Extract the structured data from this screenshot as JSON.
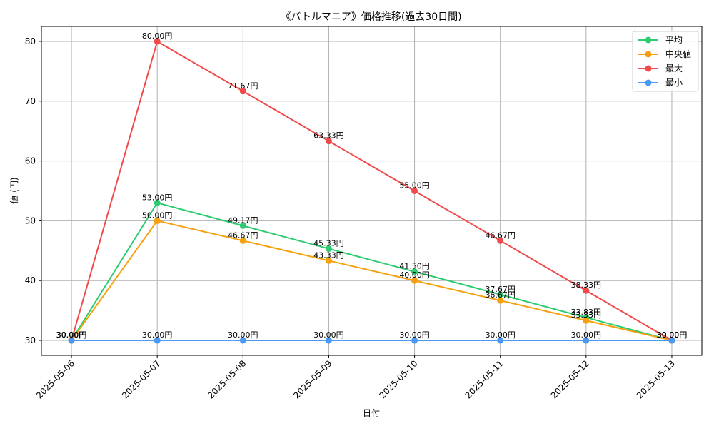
{
  "chart_data": {
    "type": "line",
    "title": "《バトルマニア》価格推移(過去30日間)",
    "xlabel": "日付",
    "ylabel": "値 (円)",
    "categories": [
      "2025-05-06",
      "2025-05-07",
      "2025-05-08",
      "2025-05-09",
      "2025-05-10",
      "2025-05-11",
      "2025-05-12",
      "2025-05-13"
    ],
    "ylim": [
      27.5,
      82.5
    ],
    "yticks": [
      30,
      40,
      50,
      60,
      70,
      80
    ],
    "grid": true,
    "legend_position": "top-right",
    "value_suffix": "円",
    "series": [
      {
        "name": "平均",
        "color": "#2ecc71",
        "values": [
          30.0,
          53.0,
          49.17,
          45.33,
          41.5,
          37.67,
          33.83,
          30.0
        ]
      },
      {
        "name": "中央値",
        "color": "#f5a00c",
        "values": [
          30.0,
          50.0,
          46.67,
          43.33,
          40.0,
          36.67,
          33.33,
          30.0
        ]
      },
      {
        "name": "最大",
        "color": "#f04a4a",
        "values": [
          30.0,
          80.0,
          71.67,
          63.33,
          55.0,
          46.67,
          38.33,
          30.0
        ]
      },
      {
        "name": "最小",
        "color": "#4a9af5",
        "values": [
          30.0,
          30.0,
          30.0,
          30.0,
          30.0,
          30.0,
          30.0,
          30.0
        ]
      }
    ]
  }
}
